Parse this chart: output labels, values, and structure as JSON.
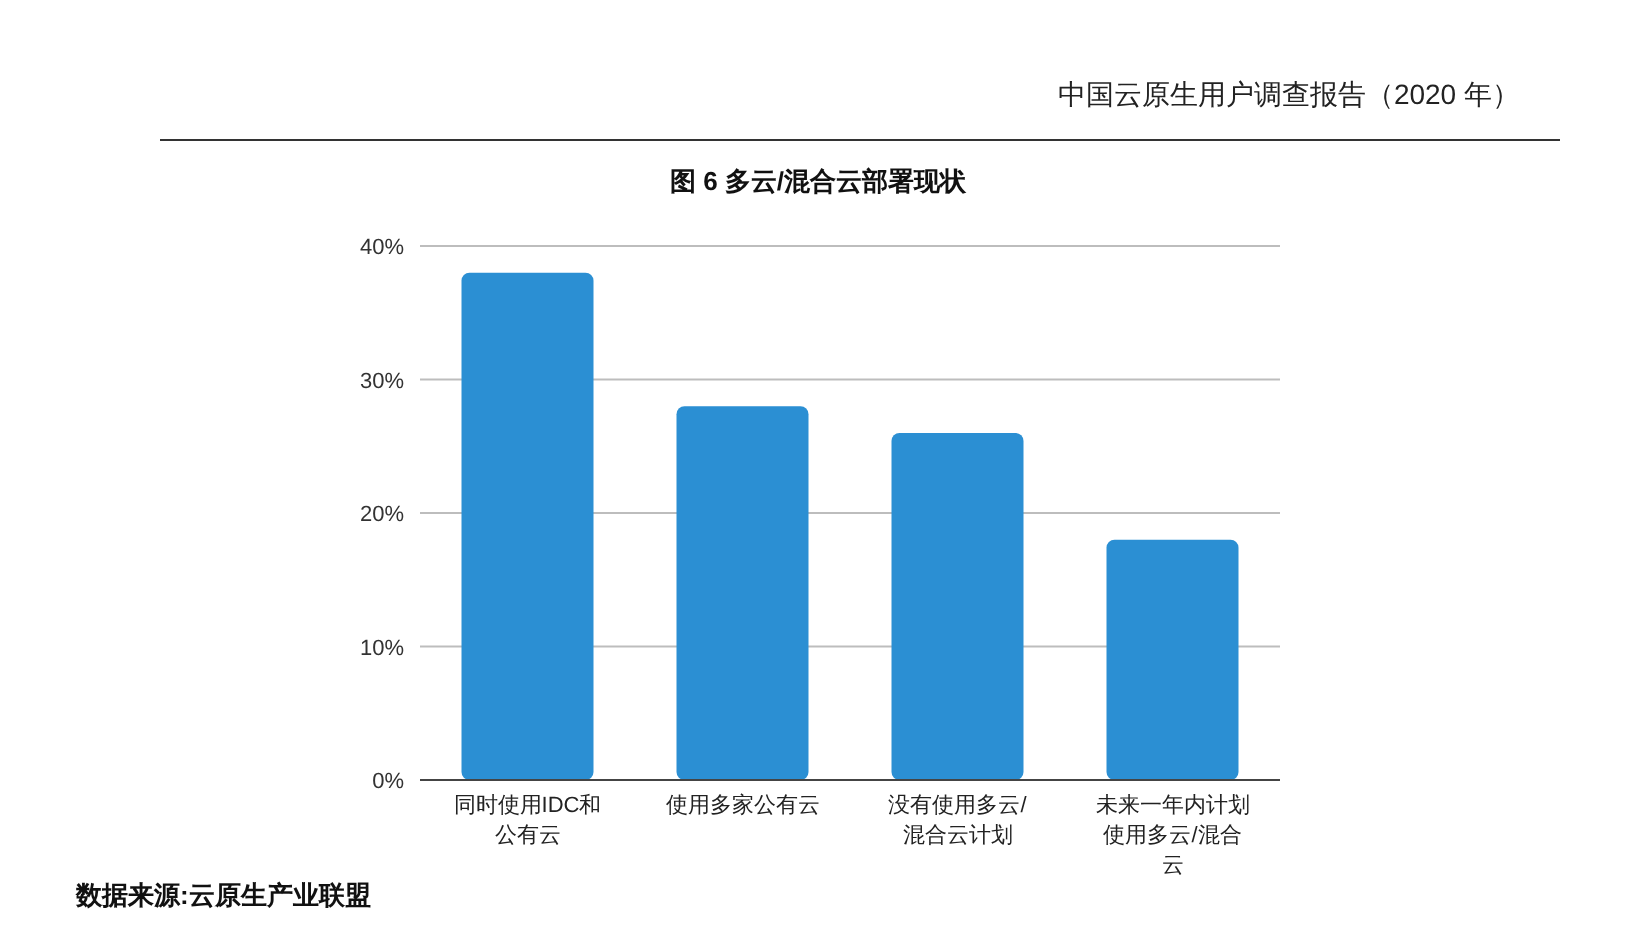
{
  "chart_data": {
    "type": "bar",
    "title": "图 6  多云/混合云部署现状",
    "categories": [
      "同时使用IDC和公有云",
      "使用多家公有云",
      "没有使用多云/混合云计划",
      "未来一年内计划使用多云/混合云"
    ],
    "values": [
      38,
      28,
      26,
      18
    ],
    "color": "#2b8fd3",
    "ylim": [
      0,
      40
    ],
    "yticks": [
      {
        "value": 0,
        "label": "0%"
      },
      {
        "value": 10,
        "label": "10%"
      },
      {
        "value": 20,
        "label": "20%"
      },
      {
        "value": 30,
        "label": "30%"
      },
      {
        "value": 40,
        "label": "40%"
      }
    ],
    "grid": "y",
    "annotations": [
      "中国云原生用户调查报告（2020 年）",
      "数据来源:云原生产业联盟"
    ]
  }
}
